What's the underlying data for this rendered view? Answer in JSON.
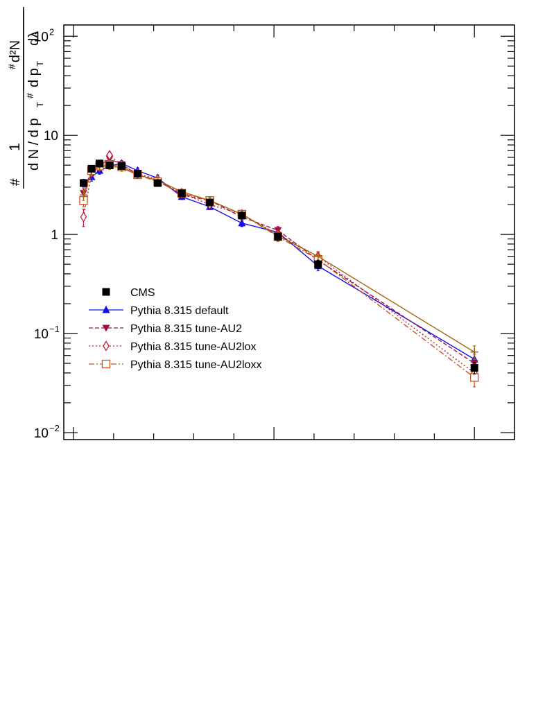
{
  "chart_data": {
    "type": "line",
    "title": "",
    "xlabel": "",
    "ylabel": {
      "prefix": "#",
      "numerator": "1",
      "denominator": "d N / d p",
      "denominator_sub": "T",
      "denominator_hash": "#",
      "fraction_numerator": "d²N",
      "fraction_denominator": "d p",
      "fraction_denominator_sub": "T",
      "fraction_denominator_tail": "dλ",
      "fraction_hash": "#"
    },
    "y_scale": "log",
    "ylim": [
      0.0085,
      130
    ],
    "y_ticks": [
      {
        "value": 0.01,
        "label": "10",
        "exp": "−2"
      },
      {
        "value": 0.1,
        "label": "10",
        "exp": "−1"
      },
      {
        "value": 1,
        "label": "1",
        "exp": ""
      },
      {
        "value": 10,
        "label": "10",
        "exp": ""
      },
      {
        "value": 100,
        "label": "10",
        "exp": "2"
      }
    ],
    "x_tick_labels_shown": false,
    "grid": false,
    "legend_position": "middle-left",
    "series": [
      {
        "name": "CMS",
        "color": "#000000",
        "marker": "filled-square",
        "line": "none",
        "x": [
          0.025,
          0.045,
          0.065,
          0.09,
          0.12,
          0.16,
          0.21,
          0.27,
          0.34,
          0.42,
          0.51,
          0.61,
          1.0
        ],
        "y": [
          3.3,
          4.6,
          5.2,
          5.0,
          4.9,
          4.1,
          3.3,
          2.6,
          2.1,
          1.55,
          0.95,
          0.5,
          0.045
        ],
        "err": [
          0.25,
          0.3,
          0.35,
          0.3,
          0.3,
          0.25,
          0.2,
          0.15,
          0.12,
          0.1,
          0.08,
          0.05,
          0.006
        ]
      },
      {
        "name": "Pythia 8.315 default",
        "color": "#1010ee",
        "marker": "triangle-up",
        "line": "solid",
        "x": [
          0.025,
          0.045,
          0.065,
          0.09,
          0.12,
          0.16,
          0.21,
          0.27,
          0.34,
          0.42,
          0.51,
          0.61,
          1.0
        ],
        "y": [
          3.3,
          3.8,
          4.4,
          4.9,
          5.2,
          4.4,
          3.7,
          2.4,
          1.9,
          1.3,
          1.05,
          0.48,
          0.055
        ],
        "err": [
          0.3,
          0.35,
          0.35,
          0.35,
          0.35,
          0.3,
          0.3,
          0.15,
          0.12,
          0.1,
          0.1,
          0.05,
          0.007
        ]
      },
      {
        "name": "Pythia 8.315 tune-AU2",
        "color": "#a0104a",
        "marker": "triangle-down",
        "line": "dashed",
        "x": [
          0.025,
          0.045,
          0.065,
          0.09,
          0.12,
          0.16,
          0.21,
          0.27,
          0.34,
          0.42,
          0.51,
          0.61,
          1.0
        ],
        "y": [
          2.6,
          4.5,
          4.9,
          5.8,
          5.1,
          4.0,
          3.5,
          2.5,
          2.2,
          1.5,
          1.1,
          0.55,
          0.05
        ],
        "err": [
          0.3,
          0.35,
          0.4,
          0.4,
          0.35,
          0.3,
          0.3,
          0.15,
          0.15,
          0.1,
          0.1,
          0.06,
          0.007
        ]
      },
      {
        "name": "Pythia 8.315 tune-AU2lox",
        "color": "#c01838",
        "marker": "open-diamond",
        "line": "dotted",
        "x": [
          0.025,
          0.045,
          0.065,
          0.09,
          0.12,
          0.16,
          0.21,
          0.27,
          0.34,
          0.42,
          0.51,
          0.61,
          1.0
        ],
        "y": [
          1.5,
          4.2,
          4.8,
          6.3,
          5.0,
          4.1,
          3.6,
          2.6,
          2.0,
          1.6,
          1.0,
          0.6,
          0.04
        ],
        "err": [
          0.3,
          0.35,
          0.4,
          0.5,
          0.35,
          0.3,
          0.3,
          0.15,
          0.15,
          0.1,
          0.1,
          0.06,
          0.006
        ]
      },
      {
        "name": "Pythia 8.315 tune-AU2loxx",
        "color": "#c8501e",
        "marker": "open-square",
        "line": "dash-dot",
        "x": [
          0.025,
          0.045,
          0.065,
          0.09,
          0.12,
          0.16,
          0.21,
          0.27,
          0.34,
          0.42,
          0.51,
          0.61,
          1.0
        ],
        "y": [
          2.2,
          4.4,
          4.9,
          5.1,
          4.8,
          4.0,
          3.4,
          2.6,
          2.2,
          1.6,
          0.95,
          0.56,
          0.036
        ],
        "err": [
          0.3,
          0.35,
          0.35,
          0.35,
          0.35,
          0.3,
          0.3,
          0.15,
          0.15,
          0.1,
          0.1,
          0.06,
          0.007
        ]
      },
      {
        "name": "",
        "color": "#a8640a",
        "marker": "plus",
        "line": "solid",
        "x": [
          0.025,
          0.045,
          0.065,
          0.09,
          0.12,
          0.16,
          0.21,
          0.27,
          0.34,
          0.42,
          0.51,
          0.61,
          1.0
        ],
        "y": [
          2.5,
          4.3,
          4.8,
          4.9,
          4.7,
          4.0,
          3.5,
          2.7,
          2.2,
          1.6,
          0.97,
          0.6,
          0.065
        ],
        "err": [
          0.3,
          0.35,
          0.35,
          0.35,
          0.35,
          0.3,
          0.3,
          0.15,
          0.15,
          0.1,
          0.1,
          0.07,
          0.01
        ]
      }
    ],
    "legend": [
      "CMS",
      "Pythia 8.315 default",
      "Pythia 8.315 tune-AU2",
      "Pythia 8.315 tune-AU2lox",
      "Pythia 8.315 tune-AU2loxx"
    ]
  }
}
